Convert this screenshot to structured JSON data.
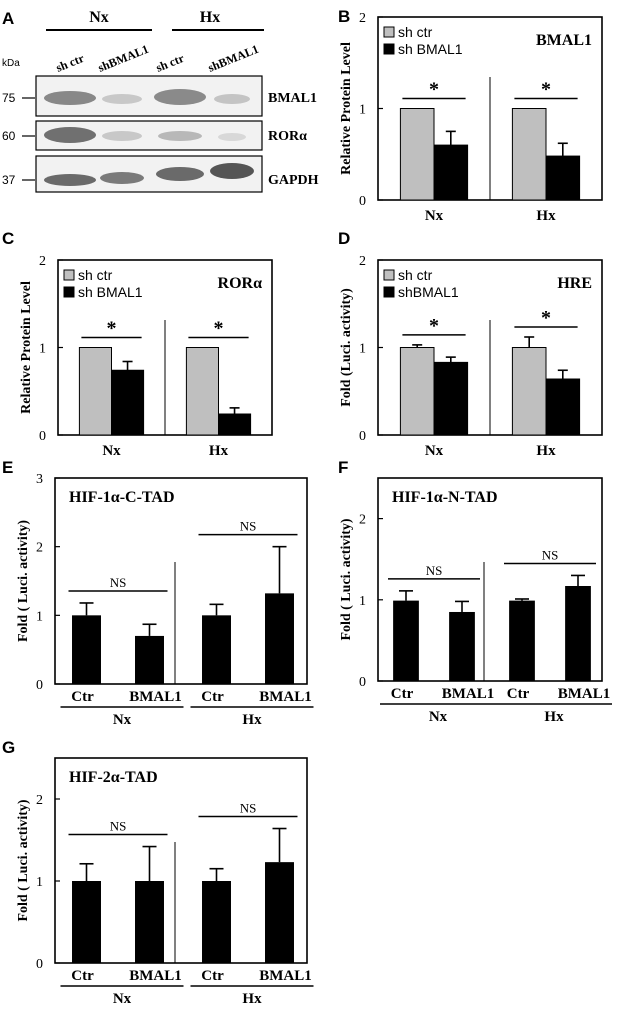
{
  "colors": {
    "gray": "#bfbfbf",
    "black": "#000000",
    "blot_bg": "#f2f2f2"
  },
  "panel_a": {
    "label": "A",
    "kda": "kDa",
    "groups": [
      "Nx",
      "Hx"
    ],
    "lanes": [
      "sh ctr",
      "shBMAL1",
      "sh ctr",
      "shBMAL1"
    ],
    "blots": [
      {
        "marker": "75",
        "name": "BMAL1"
      },
      {
        "marker": "60",
        "name": "RORα"
      },
      {
        "marker": "37",
        "name": "GAPDH"
      }
    ]
  },
  "chart_data": [
    {
      "panel": "B",
      "type": "bar",
      "title": "BMAL1",
      "ylabel": "Relative Protein Level",
      "ylim": [
        0,
        2
      ],
      "yticks": [
        "0",
        "1",
        "2"
      ],
      "groups": [
        "Nx",
        "Hx"
      ],
      "legend_position": "top-left",
      "series": [
        {
          "name": "sh ctr",
          "color": "gray",
          "values": [
            1.0,
            1.0
          ],
          "errors": [
            0,
            0
          ]
        },
        {
          "name": "sh BMAL1",
          "color": "black",
          "values": [
            0.6,
            0.48
          ],
          "errors": [
            0.15,
            0.14
          ]
        }
      ],
      "significance": [
        "*",
        "*"
      ]
    },
    {
      "panel": "C",
      "type": "bar",
      "title": "RORα",
      "ylabel": "Relative Protein Level",
      "ylim": [
        0,
        2
      ],
      "yticks": [
        "0",
        "1",
        "2"
      ],
      "groups": [
        "Nx",
        "Hx"
      ],
      "legend_position": "top-left",
      "series": [
        {
          "name": "sh ctr",
          "color": "gray",
          "values": [
            1.0,
            1.0
          ],
          "errors": [
            0,
            0
          ]
        },
        {
          "name": "sh BMAL1",
          "color": "black",
          "values": [
            0.74,
            0.24
          ],
          "errors": [
            0.1,
            0.07
          ]
        }
      ],
      "significance": [
        "*",
        "*"
      ]
    },
    {
      "panel": "D",
      "type": "bar",
      "title": "HRE",
      "ylabel": "Fold (Luci. activity)",
      "ylim": [
        0,
        2
      ],
      "yticks": [
        "0",
        "1",
        "2"
      ],
      "groups": [
        "Nx",
        "Hx"
      ],
      "legend_position": "top-left",
      "series": [
        {
          "name": "sh ctr",
          "color": "gray",
          "values": [
            1.0,
            1.0
          ],
          "errors": [
            0.03,
            0.12
          ]
        },
        {
          "name": "shBMAL1",
          "color": "black",
          "values": [
            0.83,
            0.64
          ],
          "errors": [
            0.06,
            0.1
          ]
        }
      ],
      "significance": [
        "*",
        "*"
      ]
    },
    {
      "panel": "E",
      "type": "bar",
      "title": "HIF-1α-C-TAD",
      "ylabel": "Fold ( Luci. activity)",
      "ylim": [
        0,
        3
      ],
      "yticks": [
        "0",
        "1",
        "2",
        "3"
      ],
      "groups": [
        "Nx",
        "Hx"
      ],
      "categories": [
        "Ctr",
        "BMAL1",
        "Ctr",
        "BMAL1"
      ],
      "values": [
        1.0,
        0.7,
        1.0,
        1.32
      ],
      "errors": [
        0.18,
        0.17,
        0.16,
        0.68
      ],
      "significance": [
        "NS",
        "NS"
      ]
    },
    {
      "panel": "F",
      "type": "bar",
      "title": "HIF-1α-N-TAD",
      "ylabel": "Fold ( Luci. activity)",
      "ylim": [
        0,
        2.5
      ],
      "yticks": [
        "0",
        "1",
        "2"
      ],
      "groups": [
        "Nx",
        "Hx"
      ],
      "categories": [
        "Ctr",
        "BMAL1",
        "Ctr",
        "BMAL1"
      ],
      "values": [
        0.99,
        0.85,
        0.99,
        1.17
      ],
      "errors": [
        0.12,
        0.13,
        0.02,
        0.13
      ],
      "significance": [
        "NS",
        "NS"
      ]
    },
    {
      "panel": "G",
      "type": "bar",
      "title": "HIF-2α-TAD",
      "ylabel": "Fold ( Luci. activity)",
      "ylim": [
        0,
        2.5
      ],
      "yticks": [
        "0",
        "1",
        "2"
      ],
      "groups": [
        "Nx",
        "Hx"
      ],
      "categories": [
        "Ctr",
        "BMAL1",
        "Ctr",
        "BMAL1"
      ],
      "values": [
        1.0,
        1.0,
        1.0,
        1.23
      ],
      "errors": [
        0.21,
        0.42,
        0.15,
        0.41
      ],
      "significance": [
        "NS",
        "NS"
      ]
    }
  ]
}
